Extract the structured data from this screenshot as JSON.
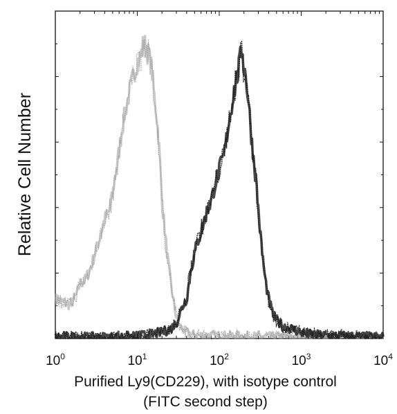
{
  "chart_data": {
    "type": "area",
    "title": "",
    "xlabel_line1": "Purified Ly9(CD229), with isotype control",
    "xlabel_line2": "(FITC second step)",
    "ylabel": "Relative Cell Number",
    "x_scale": "log",
    "xlim": [
      1,
      10000
    ],
    "ylim": [
      0,
      1
    ],
    "grid": false,
    "legend": "none",
    "x_ticks": [
      {
        "value": 1,
        "base": "10",
        "exp": "0"
      },
      {
        "value": 10,
        "base": "10",
        "exp": "1"
      },
      {
        "value": 100,
        "base": "10",
        "exp": "2"
      },
      {
        "value": 1000,
        "base": "10",
        "exp": "3"
      },
      {
        "value": 10000,
        "base": "10",
        "exp": "4"
      }
    ],
    "series": [
      {
        "role": "isotype control",
        "color": "#9a9a9a",
        "x": [
          1,
          1.2,
          1.5,
          1.8,
          2,
          2.3,
          2.6,
          3,
          3.5,
          4,
          4.5,
          5,
          5.5,
          6,
          6.5,
          7,
          8,
          9,
          10,
          11,
          12,
          13,
          14,
          15,
          16,
          17,
          18,
          19,
          20,
          22,
          24,
          26,
          28,
          30,
          33,
          36,
          40,
          45,
          50,
          60,
          80,
          100,
          200,
          500,
          1000,
          10000
        ],
        "y": [
          0.13,
          0.12,
          0.11,
          0.14,
          0.18,
          0.19,
          0.22,
          0.27,
          0.33,
          0.39,
          0.41,
          0.47,
          0.55,
          0.61,
          0.68,
          0.73,
          0.8,
          0.86,
          0.9,
          0.92,
          0.97,
          0.94,
          0.92,
          0.88,
          0.8,
          0.74,
          0.67,
          0.57,
          0.45,
          0.33,
          0.24,
          0.17,
          0.11,
          0.07,
          0.04,
          0.03,
          0.02,
          0.015,
          0.012,
          0.01,
          0.01,
          0.01,
          0.008,
          0.006,
          0.005,
          0.004
        ]
      },
      {
        "role": "Purified Ly9(CD229)",
        "color": "#1c1c1c",
        "x": [
          1,
          5,
          10,
          15,
          20,
          25,
          30,
          35,
          40,
          45,
          50,
          55,
          60,
          70,
          80,
          90,
          100,
          115,
          130,
          150,
          170,
          190,
          200,
          210,
          230,
          250,
          280,
          320,
          360,
          400,
          450,
          500,
          600,
          700,
          800,
          1000,
          1200,
          1500,
          2000,
          3000,
          10000
        ],
        "y": [
          0.005,
          0.005,
          0.008,
          0.015,
          0.02,
          0.03,
          0.05,
          0.1,
          0.13,
          0.22,
          0.28,
          0.32,
          0.35,
          0.41,
          0.45,
          0.51,
          0.55,
          0.6,
          0.7,
          0.8,
          0.87,
          0.95,
          0.88,
          0.86,
          0.76,
          0.64,
          0.52,
          0.33,
          0.2,
          0.13,
          0.08,
          0.06,
          0.04,
          0.035,
          0.03,
          0.02,
          0.015,
          0.012,
          0.01,
          0.008,
          0.005
        ]
      }
    ]
  }
}
